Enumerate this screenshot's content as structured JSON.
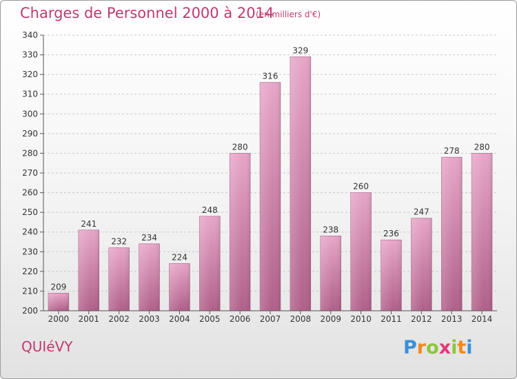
{
  "header": {
    "title": "Charges de Personnel 2000 à 2014",
    "subtitle": "(en milliers d'€)"
  },
  "footer": {
    "commune": "QUIéVY",
    "logo": [
      "P",
      "r",
      "o",
      "x",
      "i",
      "t",
      "i"
    ],
    "logo_colors": [
      "#3b8fd8",
      "#f08a1c",
      "#8cc63e",
      "#e23a7a",
      "#8cc63e",
      "#f08a1c",
      "#3b8fd8"
    ]
  },
  "chart_data": {
    "type": "bar",
    "title": "Charges de Personnel 2000 à 2014",
    "subtitle": "(en milliers d'€)",
    "categories": [
      "2000",
      "2001",
      "2002",
      "2003",
      "2004",
      "2005",
      "2006",
      "2007",
      "2008",
      "2009",
      "2010",
      "2011",
      "2012",
      "2013",
      "2014"
    ],
    "values": [
      209,
      241,
      232,
      234,
      224,
      248,
      280,
      316,
      329,
      238,
      260,
      236,
      247,
      278,
      280
    ],
    "ylim": [
      200,
      340
    ],
    "yticks": [
      200,
      210,
      220,
      230,
      240,
      250,
      260,
      270,
      280,
      290,
      300,
      310,
      320,
      330,
      340
    ],
    "grid": true,
    "bar_color": "#d57fad",
    "bar_color_dark": "#b5628f",
    "xlabel": "",
    "ylabel": ""
  }
}
